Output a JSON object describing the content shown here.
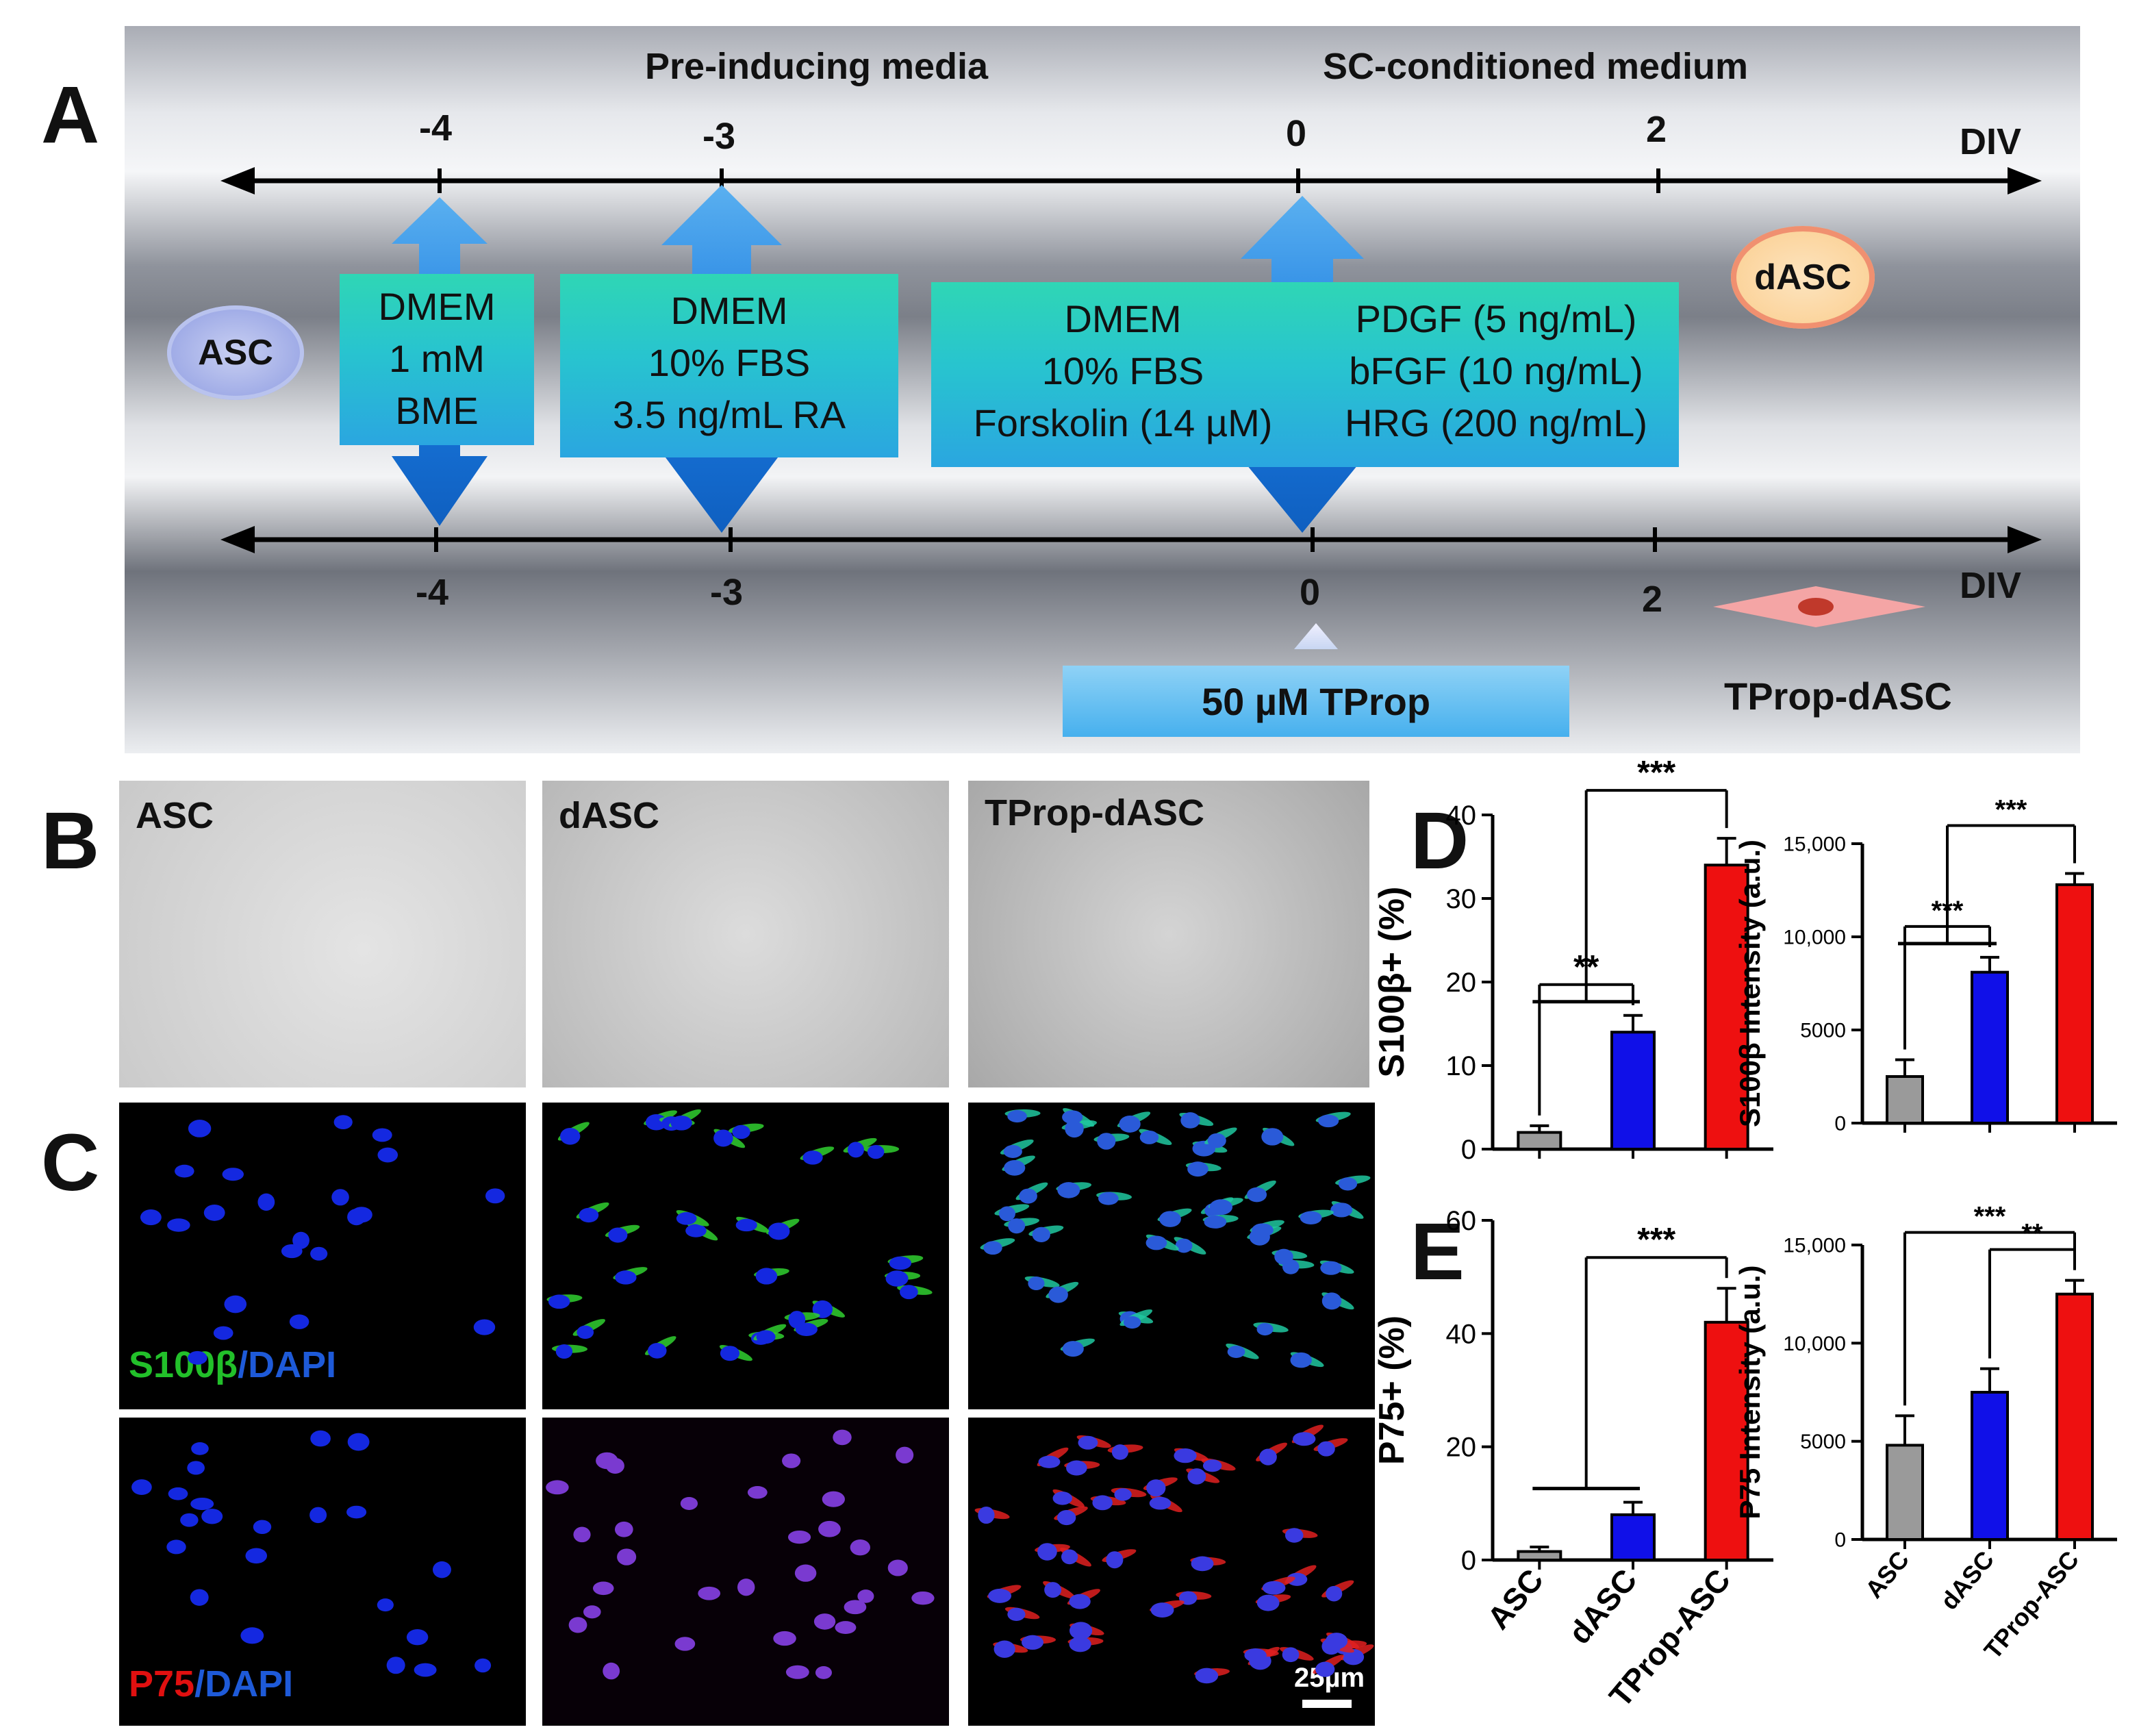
{
  "panel_letters": {
    "a": "A",
    "b": "B",
    "c": "C",
    "d": "D",
    "e": "E"
  },
  "panel_a": {
    "header_left": "Pre-inducing media",
    "header_right": "SC-conditioned medium",
    "top_ticks": [
      "-4",
      "-3",
      "0",
      "2"
    ],
    "bottom_ticks": [
      "-4",
      "-3",
      "0",
      "2"
    ],
    "axis_label": "DIV",
    "start_cell": "ASC",
    "end_cell_top": "dASC",
    "end_cell_bottom": "TProp-dASC",
    "box1": [
      "DMEM",
      "1 mM",
      "BME"
    ],
    "box2": [
      "DMEM",
      "10% FBS",
      "3.5 ng/mL RA"
    ],
    "box3_left": [
      "DMEM",
      "10% FBS",
      "Forskolin (14 µM)"
    ],
    "box3_right": [
      "PDGF (5 ng/mL)",
      "bFGF (10 ng/mL)",
      "HRG (200 ng/mL)"
    ],
    "tprop_box": "50 µM TProp",
    "colors": {
      "box_top": "#2fd6b5",
      "box_bottom": "#2aa6e0",
      "arrow": "#1a7be0"
    }
  },
  "panel_b": {
    "labels": [
      "ASC",
      "dASC",
      "TProp-dASC"
    ]
  },
  "panel_c": {
    "row1_marker": "S100β",
    "row1_sep": "/",
    "row1_dapi": "DAPI",
    "row2_marker": "P75",
    "row2_sep": "/",
    "row2_dapi": "DAPI",
    "scale_bar": "25µm",
    "colors": {
      "green": "#22c02a",
      "blue": "#1e5ad8",
      "red": "#e01010"
    }
  },
  "chart_data": [
    {
      "type": "bar",
      "categories": [
        "ASC",
        "dASC",
        "TProp-ASC"
      ],
      "values": [
        2,
        14,
        34
      ],
      "errors": [
        0.8,
        2,
        3.2
      ],
      "ylabel": "S100β+ (%)",
      "ylim": [
        0,
        40
      ],
      "yticks": [
        "0",
        "10",
        "20",
        "30",
        "40"
      ],
      "colors": [
        "#9a9a9a",
        "#1010e8",
        "#ee1010"
      ],
      "significance": [
        "**",
        "***"
      ]
    },
    {
      "type": "bar",
      "categories": [
        "ASC",
        "dASC",
        "TProp-ASC"
      ],
      "values": [
        2500,
        8100,
        12800
      ],
      "errors": [
        900,
        800,
        600
      ],
      "ylabel": "S100β Intensity (a.u.)",
      "ylim": [
        0,
        15000
      ],
      "yticks": [
        "0",
        "5000",
        "10,000",
        "15,000"
      ],
      "colors": [
        "#9a9a9a",
        "#1010e8",
        "#ee1010"
      ],
      "significance": [
        "***",
        "***"
      ]
    },
    {
      "type": "bar",
      "categories": [
        "ASC",
        "dASC",
        "TProp-ASC"
      ],
      "values": [
        1.5,
        8,
        42
      ],
      "errors": [
        0.8,
        2.2,
        6
      ],
      "ylabel": "P75+ (%)",
      "ylim": [
        0,
        60
      ],
      "yticks": [
        "0",
        "20",
        "40",
        "60"
      ],
      "colors": [
        "#9a9a9a",
        "#1010e8",
        "#ee1010"
      ],
      "significance": [
        "***"
      ]
    },
    {
      "type": "bar",
      "categories": [
        "ASC",
        "dASC",
        "TProp-ASC"
      ],
      "values": [
        4800,
        7500,
        12500
      ],
      "errors": [
        1500,
        1200,
        700
      ],
      "ylabel": "P75 Intensity (a.u.)",
      "ylim": [
        0,
        15000
      ],
      "yticks": [
        "0",
        "5000",
        "10,000",
        "15,000"
      ],
      "colors": [
        "#9a9a9a",
        "#1010e8",
        "#ee1010"
      ],
      "significance": [
        "***",
        "**"
      ]
    }
  ]
}
